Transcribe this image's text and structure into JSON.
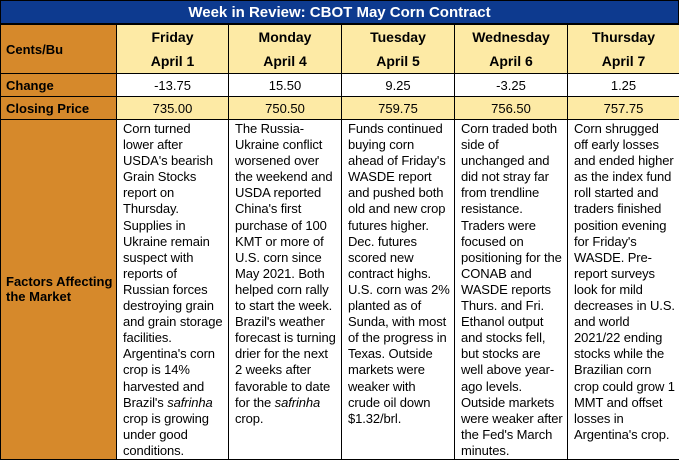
{
  "title": "Week in Review: CBOT May Corn Contract",
  "row_labels": {
    "unit": "Cents/Bu",
    "change": "Change",
    "closing": "Closing Price",
    "factors": "Factors Affecting the Market"
  },
  "days": [
    {
      "day": "Friday",
      "date": "April 1",
      "change": "-13.75",
      "closing": "735.00",
      "factors_before": "Corn turned lower after USDA's bearish Grain Stocks report on Thursday. Supplies in Ukraine remain suspect with reports of Russian forces destroying grain and grain storage facilities. Argentina's corn crop is 14% harvested and Brazil's ",
      "factors_italic": "safrinha",
      "factors_after": " crop is growing under good conditions."
    },
    {
      "day": "Monday",
      "date": "April 4",
      "change": "15.50",
      "closing": "750.50",
      "factors_before": "The Russia-Ukraine conflict worsened over the weekend and USDA reported China's first purchase of 100 KMT or more of U.S. corn since May 2021. Both helped corn rally to start the week. Brazil's weather forecast is turning drier for the next 2 weeks after favorable to date for the ",
      "factors_italic": "safrinha",
      "factors_after": " crop."
    },
    {
      "day": "Tuesday",
      "date": "April 5",
      "change": "9.25",
      "closing": "759.75",
      "factors_before": "Funds continued buying corn ahead of Friday's WASDE report and pushed both old and new crop futures higher. Dec. futures scored new contract highs. U.S. corn was 2% planted as of Sunda, with most of the progress in Texas. Outside markets were weaker with crude oil down $1.32/brl.",
      "factors_italic": "",
      "factors_after": ""
    },
    {
      "day": "Wednesday",
      "date": "April 6",
      "change": "-3.25",
      "closing": "756.50",
      "factors_before": "Corn traded both side of unchanged and did not stray far from trendline resistance. Traders were focused on positioning for the CONAB and WASDE reports Thurs. and Fri. Ethanol output and stocks fell, but stocks are well above year-ago levels. Outside markets were weaker after the Fed's March minutes.",
      "factors_italic": "",
      "factors_after": ""
    },
    {
      "day": "Thursday",
      "date": "April 7",
      "change": "1.25",
      "closing": "757.75",
      "factors_before": "Corn shrugged off early losses and ended higher as the index fund roll started and traders finished position evening for Friday's WASDE. Pre-report surveys look for mild decreases in U.S. and world 2021/22 ending stocks while the Brazilian corn crop could grow 1 MMT and offset losses in Argentina's crop.",
      "factors_italic": "",
      "factors_after": ""
    }
  ]
}
